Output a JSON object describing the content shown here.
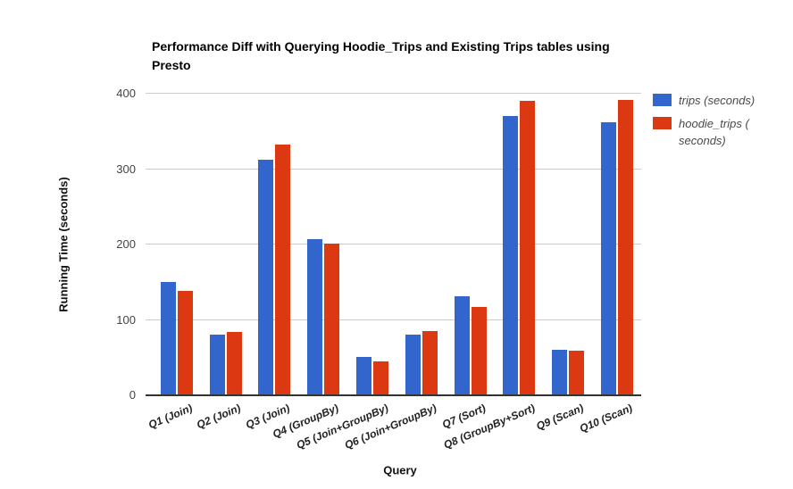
{
  "chart_data": {
    "type": "bar",
    "title": "Performance Diff with Querying Hoodie_Trips and Existing Trips tables using Presto",
    "xlabel": "Query",
    "ylabel": "Running Time (seconds)",
    "ylim": [
      0,
      400
    ],
    "yticks": [
      0,
      100,
      200,
      300,
      400
    ],
    "grid": true,
    "legend_position": "right",
    "categories": [
      "Q1 (Join)",
      "Q2 (Join)",
      "Q3 (Join)",
      "Q4 (GroupBy)",
      "Q5 (Join+GroupBy)",
      "Q6 (Join+GroupBy)",
      "Q7 (Sort)",
      "Q8 (GroupBy+Sort)",
      "Q9 (Scan)",
      "Q10 (Scan)"
    ],
    "series": [
      {
        "name": "trips (seconds)",
        "color": "#3366CC",
        "values": [
          150,
          81,
          313,
          207,
          51,
          81,
          131,
          370,
          60,
          362
        ]
      },
      {
        "name": "hoodie_trips ( seconds)",
        "color": "#DC3912",
        "values": [
          138,
          84,
          332,
          201,
          45,
          85,
          117,
          390,
          59,
          392
        ]
      }
    ]
  }
}
